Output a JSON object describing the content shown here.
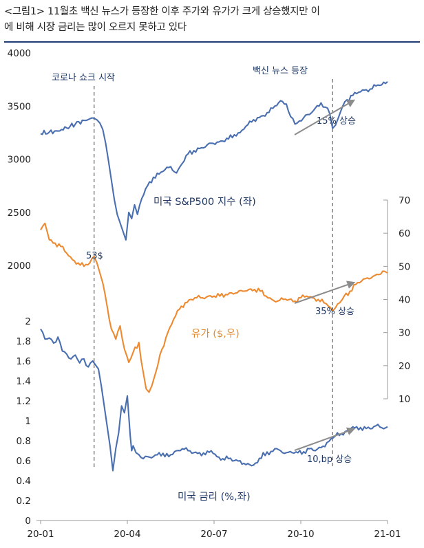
{
  "caption": {
    "line1": "<그림1> 11월초 백신 뉴스가 등장한 이후 주가와 유가가 크게 상승했지만 이",
    "line2": "에 비해 시장 금리는 많이 오르지 못하고 있다"
  },
  "colors": {
    "sp500": "#4a6fb0",
    "oil": "#ed8a30",
    "rate": "#4a6fb0",
    "arrow": "#8c8c8c",
    "vline": "#707070",
    "header_rule": "#1f3b73"
  },
  "chart_data": {
    "type": "line",
    "x_ticks": [
      "20-01",
      "20-04",
      "20-07",
      "20-10",
      "21-01"
    ],
    "x_range": [
      0,
      12
    ],
    "events": [
      {
        "label": "코로나 쇼크 시작",
        "x": 1.85
      },
      {
        "label": "백신 뉴스 등장",
        "x": 10.1
      }
    ],
    "left_axis_upper": {
      "ticks": [
        2000,
        2500,
        3000,
        3500,
        4000
      ],
      "range": [
        2000,
        4000
      ]
    },
    "left_axis_lower": {
      "ticks": [
        0,
        0.2,
        0.4,
        0.6,
        0.8,
        1,
        1.2,
        1.4,
        1.6,
        1.8,
        2
      ],
      "tick_labels": [
        "0",
        "0.2",
        "0.4",
        "0.6",
        "0.8",
        "1",
        "1.2",
        "1.4",
        "1.6",
        "1.8",
        "2"
      ],
      "range": [
        0,
        2
      ]
    },
    "right_axis": {
      "ticks": [
        10,
        20,
        30,
        40,
        50,
        60,
        70
      ],
      "range": [
        10,
        70
      ]
    },
    "series": [
      {
        "name": "미국 S&P500 지수 (좌)",
        "axis": "left_upper",
        "x": [
          0,
          0.3,
          0.6,
          0.9,
          1.2,
          1.5,
          1.7,
          1.85,
          1.95,
          2.05,
          2.15,
          2.25,
          2.35,
          2.45,
          2.55,
          2.65,
          2.75,
          2.85,
          2.95,
          3.05,
          3.15,
          3.25,
          3.35,
          3.5,
          3.7,
          3.9,
          4.1,
          4.3,
          4.5,
          4.7,
          4.9,
          5.1,
          5.3,
          5.5,
          5.7,
          5.9,
          6.1,
          6.3,
          6.5,
          6.7,
          6.9,
          7.1,
          7.3,
          7.5,
          7.7,
          7.9,
          8.1,
          8.3,
          8.5,
          8.65,
          8.8,
          8.95,
          9.1,
          9.3,
          9.5,
          9.7,
          9.85,
          10.0,
          10.1,
          10.2,
          10.3,
          10.45,
          10.6,
          10.8,
          11.0,
          11.2,
          11.4,
          11.6,
          11.8,
          12.0
        ],
        "values": [
          3240,
          3255,
          3265,
          3295,
          3330,
          3365,
          3380,
          3385,
          3370,
          3340,
          3280,
          3150,
          2980,
          2800,
          2620,
          2480,
          2400,
          2320,
          2240,
          2500,
          2440,
          2570,
          2480,
          2630,
          2750,
          2830,
          2860,
          2900,
          2930,
          2870,
          2960,
          3050,
          3080,
          3100,
          3115,
          3150,
          3160,
          3170,
          3190,
          3230,
          3250,
          3310,
          3350,
          3390,
          3410,
          3440,
          3500,
          3550,
          3520,
          3400,
          3330,
          3360,
          3390,
          3420,
          3480,
          3530,
          3490,
          3430,
          3290,
          3320,
          3390,
          3500,
          3560,
          3600,
          3630,
          3650,
          3660,
          3690,
          3700,
          3730
        ]
      },
      {
        "name": "유가 ($,우)",
        "axis": "right",
        "x": [
          0,
          0.15,
          0.3,
          0.5,
          0.7,
          0.9,
          1.1,
          1.3,
          1.5,
          1.7,
          1.85,
          1.95,
          2.05,
          2.15,
          2.3,
          2.45,
          2.6,
          2.75,
          2.9,
          3.05,
          3.2,
          3.4,
          3.55,
          3.65,
          3.75,
          3.85,
          3.95,
          4.05,
          4.2,
          4.4,
          4.6,
          4.8,
          5.0,
          5.2,
          5.4,
          5.6,
          5.8,
          6.0,
          6.2,
          6.4,
          6.6,
          6.8,
          7.0,
          7.2,
          7.4,
          7.6,
          7.8,
          8.0,
          8.2,
          8.4,
          8.6,
          8.8,
          9.0,
          9.2,
          9.4,
          9.6,
          9.8,
          9.95,
          10.1,
          10.2,
          10.35,
          10.5,
          10.7,
          10.9,
          11.1,
          11.3,
          11.5,
          11.7,
          11.9,
          12.0
        ],
        "values": [
          61,
          63,
          58,
          57,
          56,
          54,
          52,
          51,
          50,
          51,
          53,
          51,
          48,
          45,
          38,
          31,
          28,
          32,
          25,
          21,
          24,
          27,
          18,
          13,
          12,
          14,
          17,
          20,
          25,
          30,
          34,
          37,
          39,
          40,
          40.5,
          40.5,
          41,
          41,
          41,
          41.5,
          42,
          42,
          42.5,
          43,
          43,
          42.5,
          41,
          40,
          39.5,
          40,
          40,
          39.5,
          40.5,
          41,
          40.5,
          40,
          39,
          38,
          36.5,
          37.5,
          39,
          41,
          42.5,
          44.5,
          45.5,
          46.5,
          47,
          47.5,
          48.5,
          48
        ]
      },
      {
        "name": "미국 금리 (%,좌)",
        "axis": "left_lower",
        "x": [
          0,
          0.15,
          0.3,
          0.45,
          0.6,
          0.75,
          0.9,
          1.05,
          1.2,
          1.35,
          1.5,
          1.65,
          1.8,
          1.9,
          2.0,
          2.1,
          2.2,
          2.3,
          2.4,
          2.5,
          2.6,
          2.7,
          2.8,
          2.9,
          3.0,
          3.1,
          3.15,
          3.2,
          3.3,
          3.4,
          3.55,
          3.7,
          3.9,
          4.1,
          4.3,
          4.5,
          4.7,
          4.9,
          5.1,
          5.3,
          5.5,
          5.7,
          5.9,
          6.1,
          6.3,
          6.5,
          6.7,
          6.9,
          7.1,
          7.3,
          7.5,
          7.7,
          7.9,
          8.1,
          8.3,
          8.5,
          8.7,
          8.9,
          9.1,
          9.3,
          9.5,
          9.7,
          9.9,
          10.05,
          10.2,
          10.4,
          10.6,
          10.8,
          11.0,
          11.2,
          11.4,
          11.6,
          11.8,
          12.0
        ],
        "values": [
          1.92,
          1.82,
          1.83,
          1.78,
          1.84,
          1.7,
          1.67,
          1.62,
          1.66,
          1.58,
          1.62,
          1.54,
          1.6,
          1.56,
          1.52,
          1.35,
          1.15,
          0.95,
          0.75,
          0.5,
          0.72,
          0.88,
          1.15,
          1.08,
          1.25,
          0.85,
          0.7,
          0.75,
          0.68,
          0.66,
          0.62,
          0.64,
          0.64,
          0.68,
          0.64,
          0.66,
          0.7,
          0.72,
          0.7,
          0.68,
          0.68,
          0.66,
          0.7,
          0.64,
          0.62,
          0.62,
          0.6,
          0.6,
          0.56,
          0.55,
          0.58,
          0.68,
          0.66,
          0.72,
          0.7,
          0.68,
          0.68,
          0.68,
          0.69,
          0.72,
          0.7,
          0.73,
          0.78,
          0.82,
          0.85,
          0.87,
          0.9,
          0.94,
          0.91,
          0.94,
          0.92,
          0.95,
          0.93,
          0.94
        ]
      }
    ],
    "annotations": {
      "sp500_label": "미국 S&P500 지수 (좌)",
      "oil_label": "유가 ($,우)",
      "rate_label": "미국 금리 (%,좌)",
      "oil_peak": "53$",
      "sp500_change": "15% 상승",
      "oil_change": "35% 상승",
      "rate_change": "10,bp 상승"
    }
  }
}
